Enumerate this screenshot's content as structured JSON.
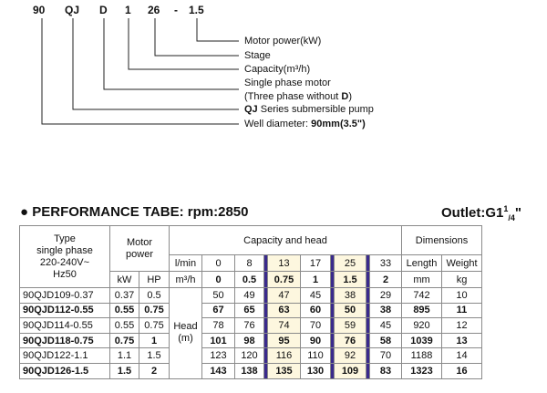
{
  "model_code": {
    "parts": [
      "90",
      "QJ",
      "D",
      "1",
      "26",
      "-",
      "1.5"
    ],
    "legend": [
      {
        "text": "Motor power(kW)"
      },
      {
        "text": "Stage"
      },
      {
        "text": "Capacity(m³/h)"
      },
      {
        "text": "Single phase motor"
      },
      {
        "text_before": "(Three phase without ",
        "bold": "D",
        "text_after": ")"
      },
      {
        "bold": "QJ",
        "text_after": " Series submersible pump"
      },
      {
        "text_before": "Well diameter: ",
        "bold": "90mm(3.5\")",
        "text_after": ""
      }
    ]
  },
  "performance": {
    "title": "PERFORMANCE TABE: rpm:2850",
    "outlet_prefix": "Outlet:G1",
    "outlet_sup": "1",
    "outlet_sub": "/4",
    "outlet_suffix": "\"",
    "header": {
      "type_lines": [
        "Type",
        "single phase",
        "220-240V~",
        "Hz50"
      ],
      "motor_power_lines": [
        "Motor",
        "power"
      ],
      "kw": "kW",
      "hp": "HP",
      "capacity_and_head": "Capacity and head",
      "lmin": "l/min",
      "m3h": "m³/h",
      "lmin_values": [
        "0",
        "8",
        "13",
        "17",
        "25",
        "33"
      ],
      "m3h_values": [
        "0",
        "0.5",
        "0.75",
        "1",
        "1.5",
        "2"
      ],
      "dimensions": "Dimensions",
      "length": "Length",
      "weight": "Weight",
      "mm": "mm",
      "kg": "kg",
      "head_lines": [
        "Head",
        "(m)"
      ]
    },
    "rows": [
      {
        "type": "90QJD109-0.37",
        "kw": "0.37",
        "hp": "0.5",
        "heads": [
          "50",
          "49",
          "47",
          "45",
          "38",
          "29"
        ],
        "length": "742",
        "weight": "10",
        "bold": false
      },
      {
        "type": "90QJD112-0.55",
        "kw": "0.55",
        "hp": "0.75",
        "heads": [
          "67",
          "65",
          "63",
          "60",
          "50",
          "38"
        ],
        "length": "895",
        "weight": "11",
        "bold": true
      },
      {
        "type": "90QJD114-0.55",
        "kw": "0.55",
        "hp": "0.75",
        "heads": [
          "78",
          "76",
          "74",
          "70",
          "59",
          "45"
        ],
        "length": "920",
        "weight": "12",
        "bold": false
      },
      {
        "type": "90QJD118-0.75",
        "kw": "0.75",
        "hp": "1",
        "heads": [
          "101",
          "98",
          "95",
          "90",
          "76",
          "58"
        ],
        "length": "1039",
        "weight": "13",
        "bold": true
      },
      {
        "type": "90QJD122-1.1",
        "kw": "1.1",
        "hp": "1.5",
        "heads": [
          "123",
          "120",
          "116",
          "110",
          "92",
          "70"
        ],
        "length": "1188",
        "weight": "14",
        "bold": false
      },
      {
        "type": "90QJD126-1.5",
        "kw": "1.5",
        "hp": "2",
        "heads": [
          "143",
          "138",
          "135",
          "130",
          "109",
          "83"
        ],
        "length": "1323",
        "weight": "16",
        "bold": true
      }
    ]
  }
}
